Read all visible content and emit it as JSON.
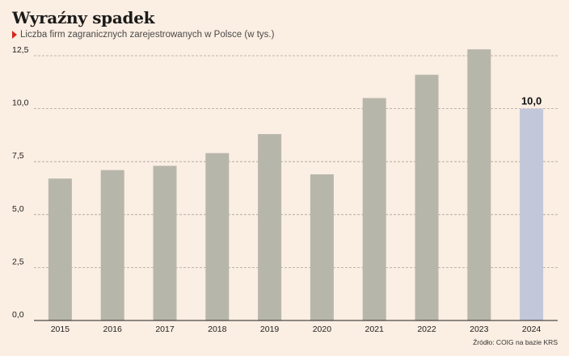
{
  "title": "Wyraźny spadek",
  "subtitle": "Liczba firm zagranicznych zarejestrowanych w Polsce (w tys.)",
  "source": "Źródło: COIG na bazie KRS",
  "colors": {
    "background": "#fbeee2",
    "bar": "#b7b6ab",
    "highlight_bar": "#c2c7d9",
    "marker": "#d7261e"
  },
  "chart_data": {
    "type": "bar",
    "categories": [
      "2015",
      "2016",
      "2017",
      "2018",
      "2019",
      "2020",
      "2021",
      "2022",
      "2023",
      "2024"
    ],
    "values": [
      6.7,
      7.1,
      7.3,
      7.9,
      8.8,
      6.9,
      10.5,
      11.6,
      12.8,
      10.0
    ],
    "ylim": [
      0,
      12.5
    ],
    "yticks": [
      "0,0",
      "2,5",
      "5,0",
      "7,5",
      "10,0",
      "12,5"
    ],
    "grid": true,
    "highlight": {
      "category": "2024",
      "label": "10,0"
    }
  }
}
